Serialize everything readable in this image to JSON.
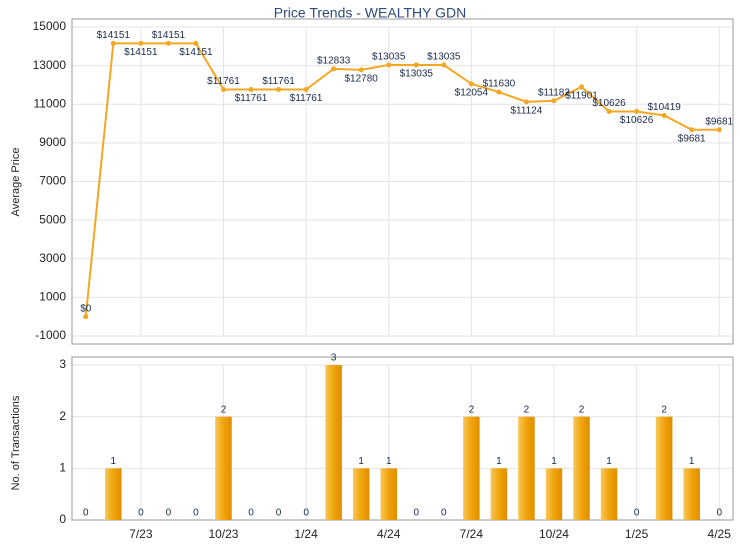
{
  "chart_data": [
    {
      "type": "line",
      "title": "Price Trends - WEALTHY GDN",
      "y_label": "Average Price",
      "color": "#f5a623",
      "values": [
        0,
        14151,
        14151,
        14151,
        14151,
        11761,
        11761,
        11761,
        11761,
        12833,
        12780,
        13035,
        13035,
        13035,
        12054,
        11630,
        11124,
        11182,
        11901,
        10626,
        10626,
        10419,
        9681,
        9681
      ],
      "value_labels": [
        "$0",
        "$14151",
        "$14151",
        "$14151",
        "$14151",
        "$11761",
        "$11761",
        "$11761",
        "$11761",
        "$12833",
        "$12780",
        "$13035",
        "$13035",
        "$13035",
        "$12054",
        "$11630",
        "$11124",
        "$11182",
        "$11901",
        "$10626",
        "$10626",
        "$10419",
        "$9681",
        "$9681"
      ],
      "ylim": [
        -1000,
        15000
      ],
      "yticks": [
        -1000,
        1000,
        3000,
        5000,
        7000,
        9000,
        11000,
        13000,
        15000
      ],
      "grid": true
    },
    {
      "type": "bar",
      "y_label": "No. of Transactions",
      "color": "#f0a30a",
      "categories": [
        null,
        null,
        "7/23",
        null,
        null,
        "10/23",
        null,
        null,
        "1/24",
        null,
        null,
        "4/24",
        null,
        null,
        "7/24",
        null,
        null,
        "10/24",
        null,
        null,
        "1/25",
        null,
        null,
        "4/25"
      ],
      "values": [
        0,
        1,
        0,
        0,
        0,
        2,
        0,
        0,
        0,
        3,
        1,
        1,
        0,
        0,
        2,
        1,
        2,
        1,
        2,
        1,
        0,
        2,
        1,
        0
      ],
      "ylim": [
        0,
        3
      ],
      "yticks": [
        0,
        1,
        2,
        3
      ],
      "grid": true
    }
  ]
}
